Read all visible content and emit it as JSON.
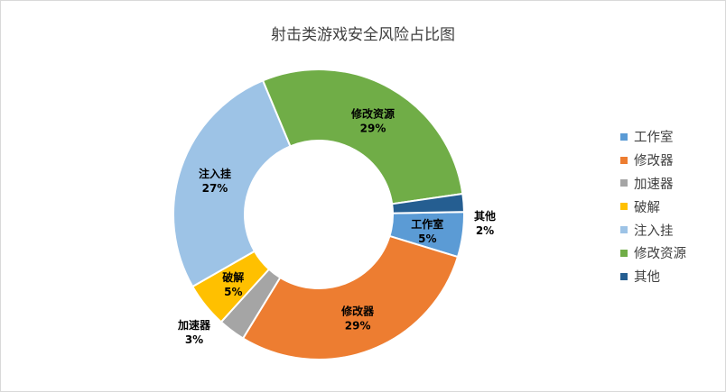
{
  "chart_data": {
    "type": "pie",
    "donut": true,
    "title": "射击类游戏安全风险占比图",
    "categories": [
      "工作室",
      "修改器",
      "加速器",
      "破解",
      "注入挂",
      "修改资源",
      "其他"
    ],
    "values": [
      5,
      29,
      3,
      5,
      27,
      29,
      2
    ],
    "value_labels": [
      "5%",
      "29%",
      "3%",
      "5%",
      "27%",
      "29%",
      "2%"
    ],
    "colors": [
      "#5b9bd5",
      "#ed7d31",
      "#a5a5a5",
      "#ffc000",
      "#9dc3e6",
      "#70ad47",
      "#255e91"
    ],
    "legend_position": "right"
  }
}
